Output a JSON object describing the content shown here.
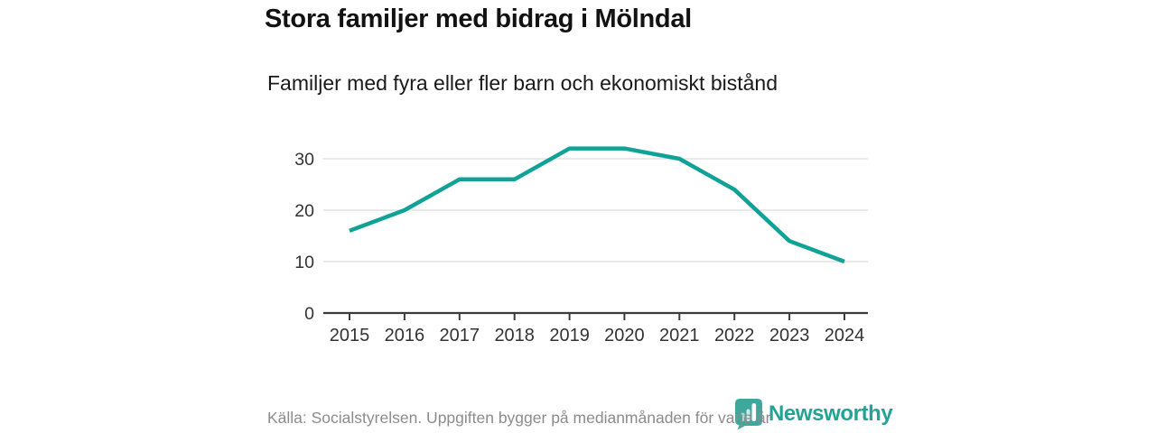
{
  "header": {
    "title": "Stora familjer med bidrag i Mölndal",
    "subtitle": "Familjer med fyra eller fler barn och ekonomiskt bistånd"
  },
  "chart_data": {
    "type": "line",
    "title": "Stora familjer med bidrag i Mölndal",
    "subtitle": "Familjer med fyra eller fler barn och ekonomiskt bistånd",
    "categories": [
      "2015",
      "2016",
      "2017",
      "2018",
      "2019",
      "2020",
      "2021",
      "2022",
      "2023",
      "2024"
    ],
    "series": [
      {
        "name": "Familjer med fyra eller fler barn och ekonomiskt bistånd",
        "values": [
          16,
          20,
          26,
          26,
          32,
          32,
          30,
          24,
          14,
          10
        ]
      }
    ],
    "xlabel": "",
    "ylabel": "",
    "ylim": [
      0,
      35
    ],
    "yticks": [
      0,
      10,
      20,
      30
    ],
    "grid": "horizontal",
    "legend": "none",
    "line_color": "#10a296"
  },
  "footer": {
    "source": "Källa: Socialstyrelsen. Uppgiften bygger på medianmånaden för varje år"
  },
  "logo": {
    "text": "Newsworthy",
    "icon": "newsworthy-pin-barchart-icon"
  },
  "colors": {
    "line": "#10a296",
    "gridline": "#dcdcdc",
    "axis_line": "#3c3c3c",
    "axis_text": "#333333",
    "title_text": "#121212",
    "subtitle_text": "#1a1a1a",
    "source_text": "#8c8c8c",
    "logo_wordmark_teal": "#23a296",
    "logo_icon_teal": "#3fa79c"
  }
}
